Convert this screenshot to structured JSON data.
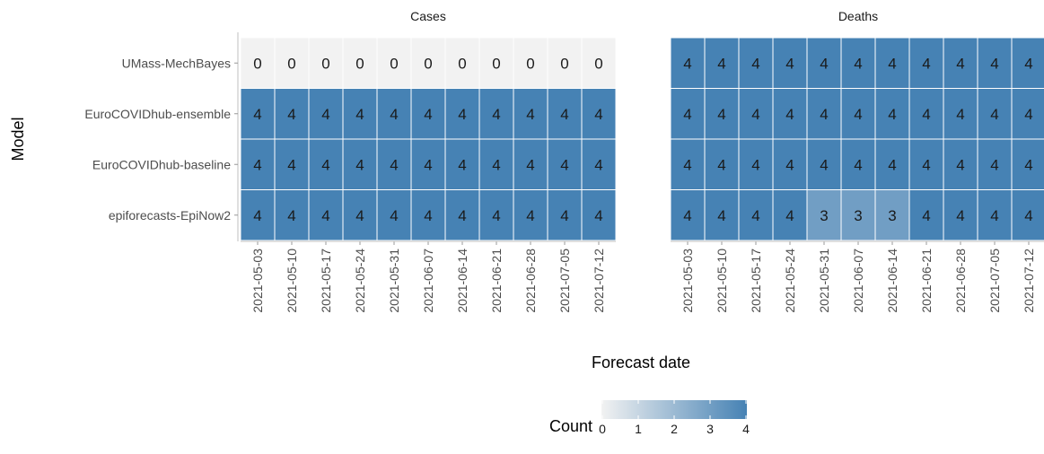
{
  "chart_data": {
    "type": "heatmap",
    "panels": [
      "Cases",
      "Deaths"
    ],
    "x_categories": [
      "2021-05-03",
      "2021-05-10",
      "2021-05-17",
      "2021-05-24",
      "2021-05-31",
      "2021-06-07",
      "2021-06-14",
      "2021-06-21",
      "2021-06-28",
      "2021-07-05",
      "2021-07-12"
    ],
    "y_categories": [
      "UMass-MechBayes",
      "EuroCOVIDhub-ensemble",
      "EuroCOVIDhub-baseline",
      "epiforecasts-EpiNow2"
    ],
    "xlabel": "Forecast date",
    "ylabel": "Model",
    "values": {
      "Cases": [
        [
          0,
          0,
          0,
          0,
          0,
          0,
          0,
          0,
          0,
          0,
          0
        ],
        [
          4,
          4,
          4,
          4,
          4,
          4,
          4,
          4,
          4,
          4,
          4
        ],
        [
          4,
          4,
          4,
          4,
          4,
          4,
          4,
          4,
          4,
          4,
          4
        ],
        [
          4,
          4,
          4,
          4,
          4,
          4,
          4,
          4,
          4,
          4,
          4
        ]
      ],
      "Deaths": [
        [
          4,
          4,
          4,
          4,
          4,
          4,
          4,
          4,
          4,
          4,
          4
        ],
        [
          4,
          4,
          4,
          4,
          4,
          4,
          4,
          4,
          4,
          4,
          4
        ],
        [
          4,
          4,
          4,
          4,
          4,
          4,
          4,
          4,
          4,
          4,
          4
        ],
        [
          4,
          4,
          4,
          4,
          3,
          3,
          3,
          4,
          4,
          4,
          4
        ]
      ]
    },
    "legend": {
      "title": "Count",
      "ticks": [
        0,
        1,
        2,
        3,
        4
      ],
      "placement": "bottom",
      "low_color": "#f2f2f2",
      "high_color": "#4682b4"
    },
    "colors": {
      "low": "#f2f2f2",
      "high": "#4682b4"
    }
  }
}
